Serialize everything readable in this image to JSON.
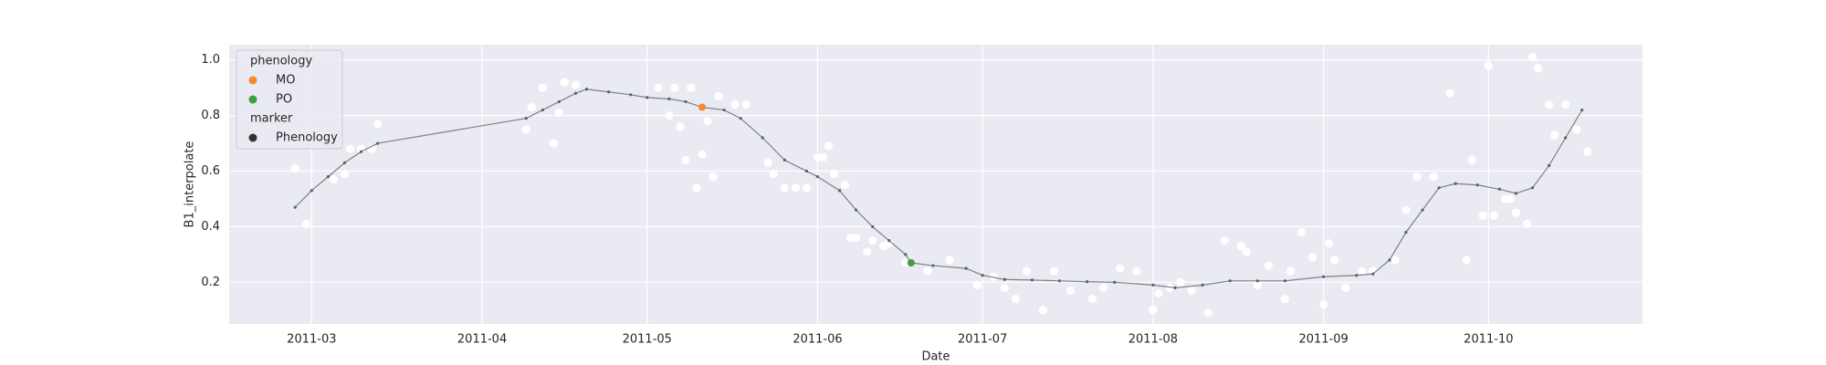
{
  "chart_data": {
    "type": "line",
    "xlabel": "Date",
    "ylabel": "B1_interpolate",
    "xlim": [
      "2011-02-14",
      "2011-10-29"
    ],
    "xticks": [
      {
        "value": "2011-03-01",
        "label": "2011-03"
      },
      {
        "value": "2011-04-01",
        "label": "2011-04"
      },
      {
        "value": "2011-05-01",
        "label": "2011-05"
      },
      {
        "value": "2011-06-01",
        "label": "2011-06"
      },
      {
        "value": "2011-07-01",
        "label": "2011-07"
      },
      {
        "value": "2011-08-01",
        "label": "2011-08"
      },
      {
        "value": "2011-09-01",
        "label": "2011-09"
      },
      {
        "value": "2011-10-01",
        "label": "2011-10"
      }
    ],
    "ylim": [
      0.05,
      1.055
    ],
    "yticks": [
      0.2,
      0.4,
      0.6,
      0.8,
      {
        "value": 1,
        "label": "1.0"
      }
    ],
    "grid": true,
    "background": "#eaeaf2",
    "observations": {
      "color": "#ffffff",
      "x": [
        "2011-02-26",
        "2011-02-28",
        "2011-03-05",
        "2011-03-07",
        "2011-03-08",
        "2011-03-10",
        "2011-03-12",
        "2011-03-13",
        "2011-04-09",
        "2011-04-10",
        "2011-04-12",
        "2011-04-14",
        "2011-04-15",
        "2011-04-16",
        "2011-04-18",
        "2011-05-03",
        "2011-05-05",
        "2011-05-06",
        "2011-05-07",
        "2011-05-08",
        "2011-05-09",
        "2011-05-10",
        "2011-05-11",
        "2011-05-12",
        "2011-05-13",
        "2011-05-14",
        "2011-05-17",
        "2011-05-19",
        "2011-05-23",
        "2011-05-24",
        "2011-05-26",
        "2011-05-28",
        "2011-05-30",
        "2011-06-01",
        "2011-06-02",
        "2011-06-03",
        "2011-06-04",
        "2011-06-06",
        "2011-06-07",
        "2011-06-08",
        "2011-06-10",
        "2011-06-11",
        "2011-06-13",
        "2011-06-14",
        "2011-06-17",
        "2011-06-21",
        "2011-06-25",
        "2011-06-30",
        "2011-07-03",
        "2011-07-05",
        "2011-07-07",
        "2011-07-09",
        "2011-07-12",
        "2011-07-14",
        "2011-07-17",
        "2011-07-21",
        "2011-07-23",
        "2011-07-26",
        "2011-07-29",
        "2011-08-01",
        "2011-08-02",
        "2011-08-04",
        "2011-08-06",
        "2011-08-08",
        "2011-08-11",
        "2011-08-14",
        "2011-08-17",
        "2011-08-18",
        "2011-08-20",
        "2011-08-22",
        "2011-08-25",
        "2011-08-26",
        "2011-08-28",
        "2011-08-30",
        "2011-09-01",
        "2011-09-02",
        "2011-09-03",
        "2011-09-05",
        "2011-09-08",
        "2011-09-10",
        "2011-09-14",
        "2011-09-16",
        "2011-09-18",
        "2011-09-21",
        "2011-09-24",
        "2011-09-27",
        "2011-09-28",
        "2011-09-30",
        "2011-10-01",
        "2011-10-02",
        "2011-10-04",
        "2011-10-05",
        "2011-10-06",
        "2011-10-08",
        "2011-10-09",
        "2011-10-10",
        "2011-10-12",
        "2011-10-13",
        "2011-10-15",
        "2011-10-17",
        "2011-10-19"
      ],
      "values": [
        0.61,
        0.41,
        0.57,
        0.59,
        0.68,
        0.68,
        0.68,
        0.77,
        0.75,
        0.83,
        0.9,
        0.7,
        0.81,
        0.92,
        0.91,
        0.9,
        0.8,
        0.9,
        0.76,
        0.64,
        0.9,
        0.54,
        0.66,
        0.78,
        0.58,
        0.87,
        0.84,
        0.84,
        0.63,
        0.59,
        0.54,
        0.54,
        0.54,
        0.65,
        0.65,
        0.69,
        0.59,
        0.55,
        0.36,
        0.36,
        0.31,
        0.35,
        0.33,
        0.34,
        0.27,
        0.24,
        0.28,
        0.19,
        0.22,
        0.18,
        0.14,
        0.24,
        0.1,
        0.24,
        0.17,
        0.14,
        0.18,
        0.25,
        0.24,
        0.1,
        0.16,
        0.18,
        0.2,
        0.17,
        0.09,
        0.35,
        0.33,
        0.31,
        0.19,
        0.26,
        0.14,
        0.24,
        0.38,
        0.29,
        0.12,
        0.34,
        0.28,
        0.18,
        0.24,
        0.24,
        0.28,
        0.46,
        0.58,
        0.58,
        0.88,
        0.28,
        0.64,
        0.44,
        0.98,
        0.44,
        0.5,
        0.5,
        0.45,
        0.41,
        1.01,
        0.97,
        0.84,
        0.73,
        0.84,
        0.75,
        0.67
      ]
    },
    "line": {
      "color": "#808080",
      "marker_color": "#4d6478",
      "x": [
        "2011-02-26",
        "2011-03-01",
        "2011-03-04",
        "2011-03-07",
        "2011-03-10",
        "2011-03-13",
        "2011-04-09",
        "2011-04-12",
        "2011-04-15",
        "2011-04-18",
        "2011-04-20",
        "2011-04-24",
        "2011-04-28",
        "2011-05-01",
        "2011-05-05",
        "2011-05-08",
        "2011-05-11",
        "2011-05-15",
        "2011-05-18",
        "2011-05-22",
        "2011-05-26",
        "2011-05-30",
        "2011-06-01",
        "2011-06-05",
        "2011-06-08",
        "2011-06-11",
        "2011-06-14",
        "2011-06-17",
        "2011-06-18",
        "2011-06-22",
        "2011-06-28",
        "2011-07-01",
        "2011-07-05",
        "2011-07-10",
        "2011-07-15",
        "2011-07-20",
        "2011-07-25",
        "2011-08-01",
        "2011-08-05",
        "2011-08-10",
        "2011-08-15",
        "2011-08-20",
        "2011-08-25",
        "2011-09-01",
        "2011-09-07",
        "2011-09-10",
        "2011-09-13",
        "2011-09-16",
        "2011-09-19",
        "2011-09-22",
        "2011-09-25",
        "2011-09-29",
        "2011-10-03",
        "2011-10-06",
        "2011-10-09",
        "2011-10-12",
        "2011-10-15",
        "2011-10-18"
      ],
      "values": [
        0.47,
        0.53,
        0.58,
        0.63,
        0.67,
        0.7,
        0.79,
        0.82,
        0.85,
        0.88,
        0.895,
        0.885,
        0.875,
        0.865,
        0.86,
        0.85,
        0.83,
        0.82,
        0.79,
        0.72,
        0.64,
        0.6,
        0.58,
        0.53,
        0.46,
        0.4,
        0.35,
        0.3,
        0.27,
        0.26,
        0.25,
        0.225,
        0.21,
        0.208,
        0.205,
        0.202,
        0.2,
        0.19,
        0.18,
        0.19,
        0.205,
        0.205,
        0.205,
        0.22,
        0.225,
        0.23,
        0.28,
        0.38,
        0.46,
        0.54,
        0.555,
        0.55,
        0.535,
        0.52,
        0.54,
        0.62,
        0.72,
        0.82
      ]
    },
    "phenology": [
      {
        "name": "MO",
        "color": "#f28a2e",
        "x": "2011-05-11",
        "value": 0.83
      },
      {
        "name": "PO",
        "color": "#3ca03c",
        "x": "2011-06-18",
        "value": 0.27
      }
    ],
    "legend": {
      "location": "upper left",
      "hue_title": "phenology",
      "marker_title": "marker",
      "marker_label": "Phenology",
      "marker_color": "#333333"
    }
  }
}
